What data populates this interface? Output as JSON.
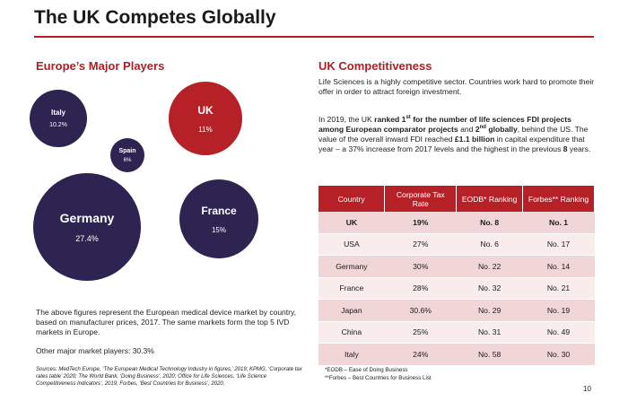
{
  "header": {
    "title": "The UK Competes Globally"
  },
  "left": {
    "heading": "Europe’s Major Players",
    "bubbles": {
      "italy": {
        "name": "Italy",
        "pct": "10.2%"
      },
      "uk": {
        "name": "UK",
        "pct": "11%"
      },
      "spain": {
        "name": "Spain",
        "pct": "6%"
      },
      "france": {
        "name": "France",
        "pct": "15%"
      },
      "germany": {
        "name": "Germany",
        "pct": "27.4%"
      }
    },
    "description": "The above figures represent the European medical device market by country, based on manufacturer prices, 2017. The same markets form the top 5 IVD markets in Europe.",
    "other": "Other major market players: 30.3%",
    "sources": "Sources: MedTech Europe, ‘The European Medical Technology Industry in figures,’ 2019; KPMG, ‘Corporate tax rates table’ 2020; The World Bank, ‘Doing Business’, 2020; Office for Life Sciences, ‘Life Science Competitiveness Indicators’, 2019; Forbes, ‘Best Countries for Business’, 2020."
  },
  "right": {
    "heading": "UK Competitiveness",
    "p1": "Life Sciences is a highly competitive sector. Countries work hard to promote their offer in order to attract foreign investment.",
    "p2": {
      "a": "In 2019, the UK ",
      "b1": "ranked 1",
      "b1_sup": "st",
      "b2": " for the number of life sciences FDI projects among European comparator projects",
      "c": " and ",
      "d1": "2",
      "d1_sup": "nd",
      "d2": " globally",
      "e": ", behind the US. The value of the overall inward FDI reached ",
      "f": "£1.1 billion",
      "g": " in capital expenditure that year – a 37% increase from 2017 levels and the highest in the previous ",
      "h": "8",
      "i": " years."
    },
    "table": {
      "headers": [
        "Country",
        "Corporate Tax Rate",
        "EODB* Ranking",
        "Forbes** Ranking"
      ],
      "rows": [
        [
          "UK",
          "19%",
          "No. 8",
          "No. 1"
        ],
        [
          "USA",
          "27%",
          "No. 6",
          "No. 17"
        ],
        [
          "Germany",
          "30%",
          "No. 22",
          "No. 14"
        ],
        [
          "France",
          "28%",
          "No. 32",
          "No. 21"
        ],
        [
          "Japan",
          "30.6%",
          "No. 29",
          "No. 19"
        ],
        [
          "China",
          "25%",
          "No. 31",
          "No. 49"
        ],
        [
          "Italy",
          "24%",
          "No. 58",
          "No. 30"
        ]
      ]
    },
    "footnotes": [
      "*EODB – Ease of Doing Business",
      "**Forbes – Best Countries for Business List"
    ]
  },
  "page_number": "10"
}
